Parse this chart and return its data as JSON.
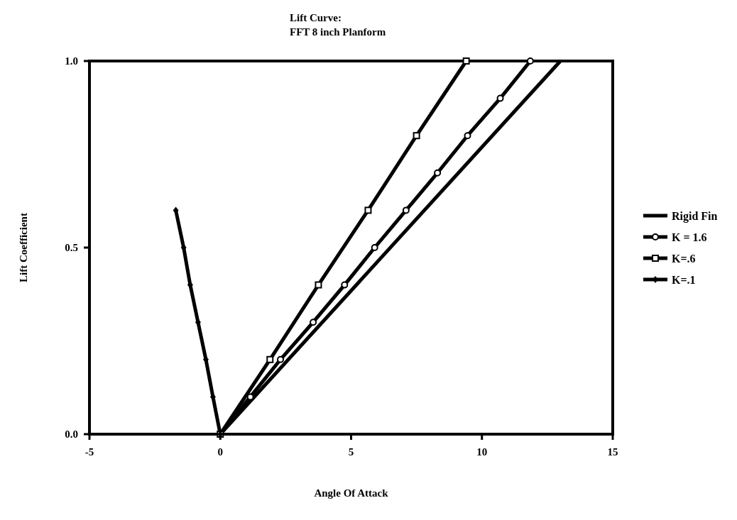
{
  "chart_data": {
    "type": "line",
    "title": "Lift Curve:\nFFT 8 inch Planform",
    "xlabel": "Angle Of Attack",
    "ylabel": "Lift Coefficient",
    "xlim": [
      -5,
      15
    ],
    "xticks": [
      -5,
      0,
      5,
      10,
      15
    ],
    "ylim": [
      0,
      1
    ],
    "yticks": [
      {
        "value": 0,
        "label": "0.0"
      },
      {
        "value": 0.5,
        "label": "0.5"
      },
      {
        "value": 1,
        "label": "1.0"
      }
    ],
    "grid": false,
    "legend": "right",
    "line_style": "solid",
    "series": [
      {
        "name": "Rigid Fin",
        "color": "#000000",
        "x": [
          13.0,
          0
        ],
        "values": [
          1.0,
          0
        ]
      },
      {
        "name": "K = 1.6",
        "color": "#000000",
        "marker": "circle",
        "x": [
          11.85,
          10.7,
          9.45,
          8.3,
          7.1,
          5.9,
          4.75,
          3.55,
          2.3,
          1.15,
          0
        ],
        "values": [
          1.0,
          0.9,
          0.8,
          0.7,
          0.6,
          0.5,
          0.4,
          0.3,
          0.2,
          0.1,
          0
        ]
      },
      {
        "name": "K=.6",
        "color": "#000000",
        "marker": "square",
        "x": [
          9.4,
          7.5,
          5.65,
          3.75,
          1.9,
          0
        ],
        "values": [
          1.0,
          0.8,
          0.6,
          0.4,
          0.2,
          0
        ]
      },
      {
        "name": "K=.1",
        "color": "#000000",
        "marker": "diamond",
        "x": [
          0,
          -0.28,
          -0.55,
          -0.85,
          -1.15,
          -1.4,
          -1.7
        ],
        "values": [
          0,
          0.1,
          0.2,
          0.3,
          0.4,
          0.5,
          0.6
        ]
      }
    ]
  }
}
